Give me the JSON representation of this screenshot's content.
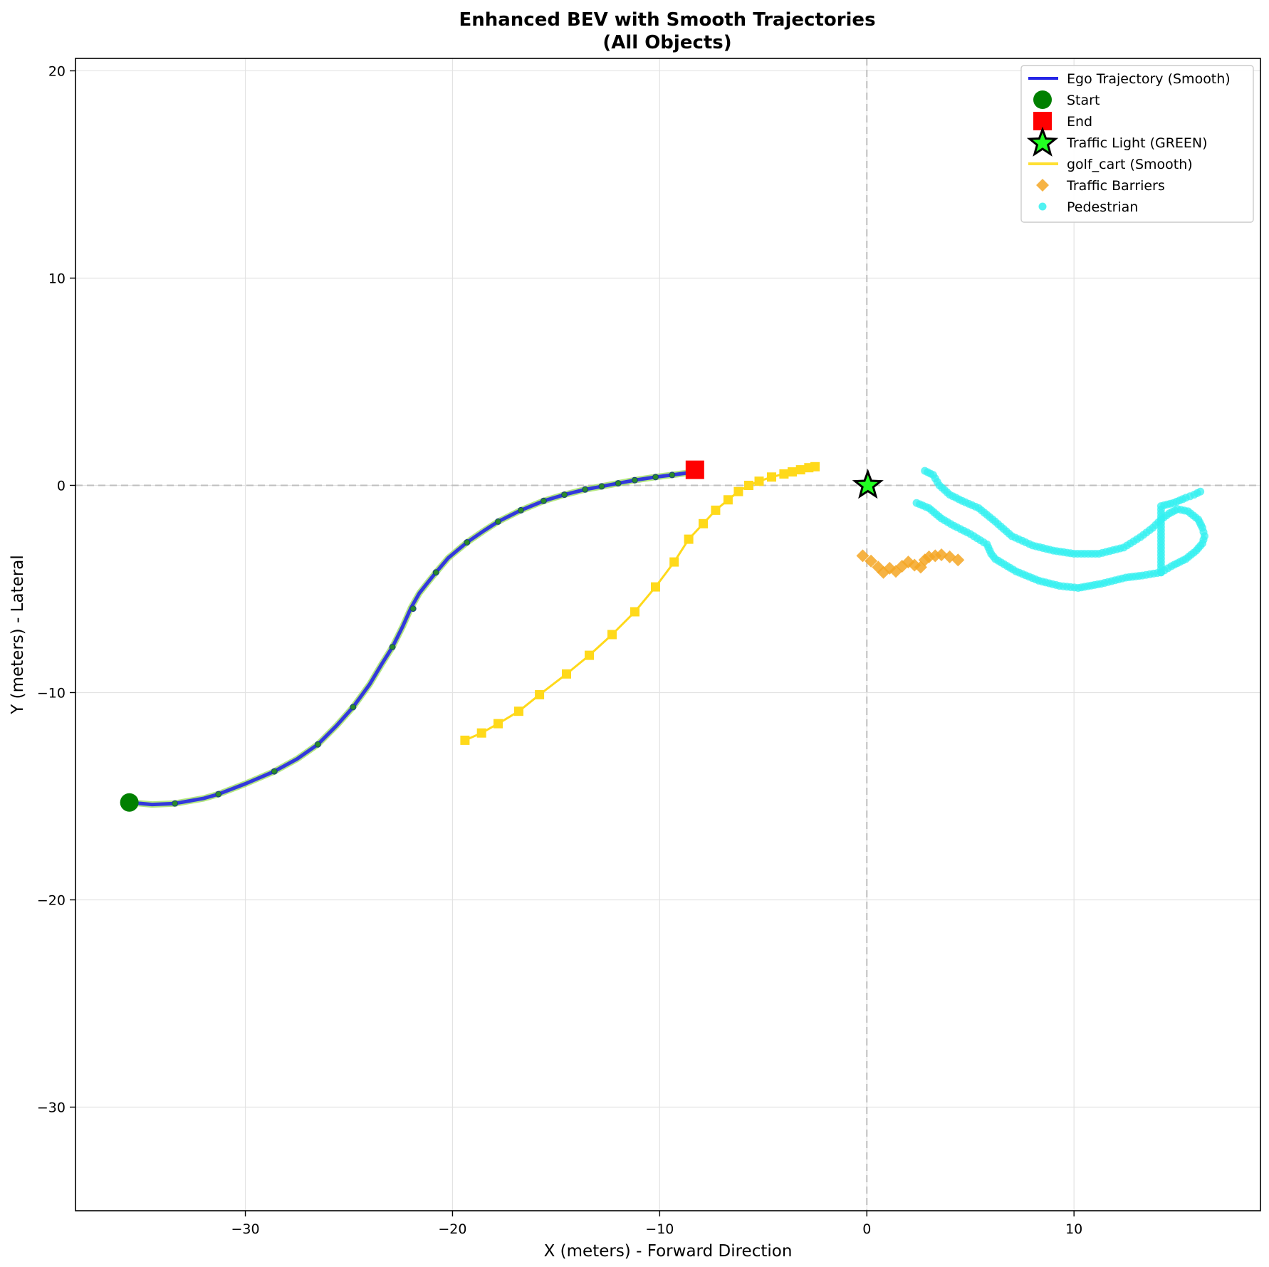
{
  "chart_data": {
    "type": "line",
    "title_line1": "Enhanced BEV with Smooth Trajectories",
    "title_line2": "(All Objects)",
    "xlabel": "X (meters) - Forward Direction",
    "ylabel": "Y (meters) - Lateral",
    "xlim": [
      -38.2,
      19.0
    ],
    "ylim": [
      -35.0,
      20.6
    ],
    "xticks": [
      -30,
      -20,
      -10,
      0,
      10
    ],
    "yticks": [
      20,
      10,
      0,
      -10,
      -20,
      -30
    ],
    "grid": true,
    "reference_lines": {
      "x": 0,
      "y": 0,
      "style": "dashed",
      "color": "#bfbfbf"
    },
    "legend_position": "top-right",
    "legend": [
      {
        "label": "Ego Trajectory (Smooth)",
        "kind": "line",
        "color": "#2525e6"
      },
      {
        "label": "Start",
        "kind": "circle",
        "color": "#008000"
      },
      {
        "label": "End",
        "kind": "square",
        "color": "#ff0000"
      },
      {
        "label": "Traffic Light (GREEN)",
        "kind": "star",
        "color": "#22ff22"
      },
      {
        "label": "golf_cart (Smooth)",
        "kind": "line",
        "color": "#ffe033"
      },
      {
        "label": "Traffic Barriers",
        "kind": "diamond",
        "color": "#f5a623"
      },
      {
        "label": "Pedestrian",
        "kind": "dot",
        "color": "#33f0f0"
      }
    ],
    "ego_trajectory": {
      "name": "Ego Trajectory (Smooth)",
      "color": "#2525e6",
      "x": [
        -35.6,
        -34.5,
        -33.4,
        -32.0,
        -31.3,
        -30.0,
        -28.6,
        -27.5,
        -26.5,
        -25.6,
        -24.8,
        -24.0,
        -23.4,
        -22.9,
        -22.4,
        -22.0,
        -21.6,
        -21.2,
        -20.8,
        -20.2,
        -19.3,
        -18.5,
        -17.8,
        -16.7,
        -15.6,
        -14.6,
        -13.6,
        -12.8,
        -12.0,
        -11.2,
        -10.2,
        -9.4,
        -8.3
      ],
      "y": [
        -15.3,
        -15.4,
        -15.35,
        -15.1,
        -14.9,
        -14.4,
        -13.8,
        -13.2,
        -12.5,
        -11.6,
        -10.7,
        -9.6,
        -8.6,
        -7.8,
        -6.8,
        -5.9,
        -5.2,
        -4.7,
        -4.2,
        -3.5,
        -2.75,
        -2.2,
        -1.75,
        -1.2,
        -0.75,
        -0.45,
        -0.2,
        -0.05,
        0.1,
        0.25,
        0.4,
        0.5,
        0.65
      ],
      "markers_x": [
        -33.4,
        -31.3,
        -28.6,
        -26.5,
        -24.8,
        -22.9,
        -21.9,
        -20.8,
        -19.3,
        -17.8,
        -16.7,
        -15.6,
        -14.6,
        -13.6,
        -12.8,
        -12.0,
        -11.2,
        -10.2,
        -9.4
      ],
      "markers_y": [
        -15.35,
        -14.9,
        -13.8,
        -12.5,
        -10.7,
        -7.8,
        -5.95,
        -4.2,
        -2.75,
        -1.75,
        -1.2,
        -0.75,
        -0.45,
        -0.2,
        -0.05,
        0.1,
        0.25,
        0.4,
        0.5
      ]
    },
    "start": {
      "x": -35.6,
      "y": -15.3
    },
    "end": {
      "x": -8.3,
      "y": 0.75
    },
    "traffic_light": {
      "x": 0.05,
      "y": 0.0
    },
    "golf_cart": {
      "name": "golf_cart (Smooth)",
      "color": "#ffe033",
      "x": [
        -19.4,
        -18.6,
        -17.8,
        -16.8,
        -15.8,
        -14.5,
        -13.4,
        -12.3,
        -11.2,
        -10.2,
        -9.3,
        -8.6,
        -7.9,
        -7.3,
        -6.7,
        -6.2,
        -5.7,
        -5.2,
        -4.6,
        -4.0,
        -3.6,
        -3.2,
        -2.8,
        -2.5
      ],
      "y": [
        -12.3,
        -11.95,
        -11.5,
        -10.9,
        -10.1,
        -9.1,
        -8.2,
        -7.2,
        -6.1,
        -4.9,
        -3.7,
        -2.6,
        -1.85,
        -1.2,
        -0.7,
        -0.3,
        0.0,
        0.2,
        0.4,
        0.55,
        0.65,
        0.75,
        0.85,
        0.9
      ]
    },
    "traffic_barriers": {
      "name": "Traffic Barriers",
      "color": "#f5a623",
      "x": [
        -0.2,
        0.2,
        0.55,
        0.8,
        1.1,
        1.4,
        1.7,
        2.0,
        2.3,
        2.6,
        2.8,
        3.0,
        3.3,
        3.6,
        4.0,
        4.4
      ],
      "y": [
        -3.4,
        -3.65,
        -3.95,
        -4.2,
        -4.0,
        -4.15,
        -3.9,
        -3.7,
        -3.85,
        -3.95,
        -3.6,
        -3.45,
        -3.4,
        -3.35,
        -3.45,
        -3.6
      ]
    },
    "pedestrian_tracks": [
      {
        "name": "Pedestrian",
        "color": "#33f0f0",
        "x": [
          2.8,
          3.2,
          3.5,
          4.0,
          4.6,
          5.4,
          6.2,
          7.0,
          8.0,
          9.0,
          10.0,
          11.2,
          12.4,
          13.2,
          13.8,
          14.2,
          14.6,
          15.0,
          15.5,
          16.0,
          16.2,
          16.3,
          16.2,
          15.9,
          15.4,
          14.7,
          14.2
        ],
        "y": [
          0.7,
          0.5,
          0.0,
          -0.45,
          -0.75,
          -1.1,
          -1.75,
          -2.45,
          -2.9,
          -3.15,
          -3.3,
          -3.3,
          -3.0,
          -2.5,
          -2.05,
          -1.65,
          -1.35,
          -1.15,
          -1.25,
          -1.65,
          -2.05,
          -2.45,
          -2.8,
          -3.15,
          -3.55,
          -3.9,
          -4.2
        ]
      },
      {
        "name": "Pedestrian",
        "color": "#33f0f0",
        "x": [
          2.4,
          3.0,
          3.6,
          4.2,
          5.0,
          5.8,
          6.0,
          6.2,
          7.2,
          8.3,
          9.3,
          10.2,
          11.3,
          12.5,
          13.3,
          14.2,
          14.2,
          14.8,
          15.4,
          15.8,
          16.1
        ],
        "y": [
          -0.85,
          -1.1,
          -1.6,
          -1.95,
          -2.35,
          -2.85,
          -3.3,
          -3.55,
          -4.15,
          -4.6,
          -4.85,
          -4.95,
          -4.75,
          -4.45,
          -4.35,
          -4.2,
          -1.0,
          -0.85,
          -0.6,
          -0.45,
          -0.3
        ]
      }
    ]
  }
}
